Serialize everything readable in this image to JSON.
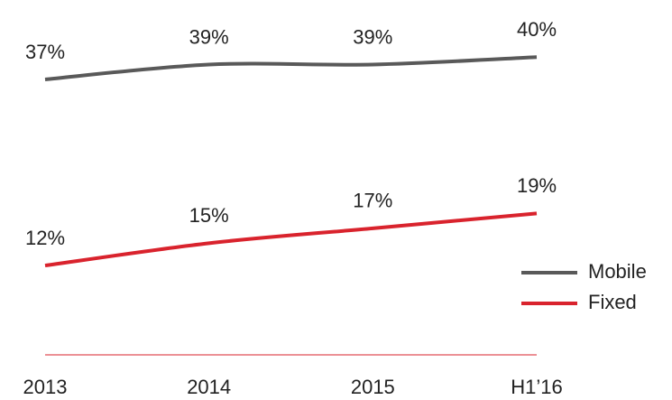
{
  "chart_data": {
    "type": "line",
    "categories": [
      "2013",
      "2014",
      "2015",
      "H1’16"
    ],
    "series": [
      {
        "name": "Mobile",
        "color": "#595959",
        "values": [
          37,
          39,
          39,
          40
        ],
        "value_labels": [
          "37%",
          "39%",
          "39%",
          "40%"
        ]
      },
      {
        "name": "Fixed",
        "color": "#d9232d",
        "values": [
          12,
          15,
          17,
          19
        ],
        "value_labels": [
          "12%",
          "15%",
          "17%",
          "19%"
        ]
      }
    ],
    "ylim": [
      0,
      45
    ],
    "legend": "lower right"
  }
}
